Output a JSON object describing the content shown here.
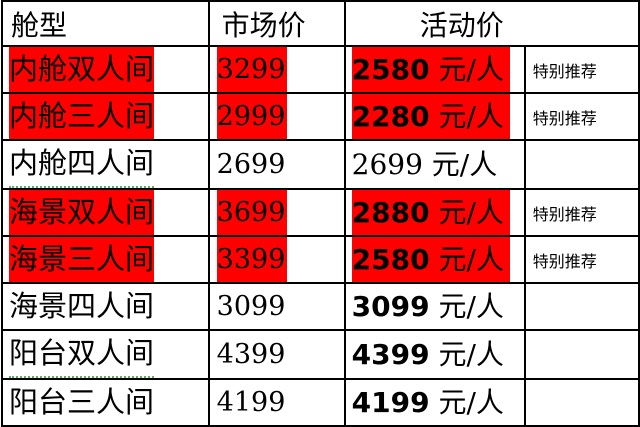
{
  "headers": [
    "舱型",
    "市场价",
    "活动价"
  ],
  "highlight_color": "#ff0000",
  "unit": "元/人",
  "rows": [
    {
      "name": "内舱双人间",
      "market": "3299",
      "promo": "2580",
      "note": "特别推荐",
      "highlight": true
    },
    {
      "name": "内舱三人间",
      "market": "2999",
      "promo": "2280",
      "note": "特别推荐",
      "highlight": true
    },
    {
      "name": "内舱四人间",
      "market": "2699",
      "promo": "2699",
      "note": "",
      "highlight": false
    },
    {
      "name": "海景双人间",
      "market": "3699",
      "promo": "2880",
      "note": "特别推荐",
      "highlight": true
    },
    {
      "name": "海景三人间",
      "market": "3399",
      "promo": "2580",
      "note": "特别推荐",
      "highlight": true
    },
    {
      "name": "海景四人间",
      "market": "3099",
      "promo": "3099",
      "note": "",
      "highlight": false
    },
    {
      "name": "阳台双人间",
      "market": "4399",
      "promo": "4399",
      "note": "",
      "highlight": false
    },
    {
      "name": "阳台三人间",
      "market": "4199",
      "promo": "4199",
      "note": "",
      "highlight": false
    }
  ]
}
